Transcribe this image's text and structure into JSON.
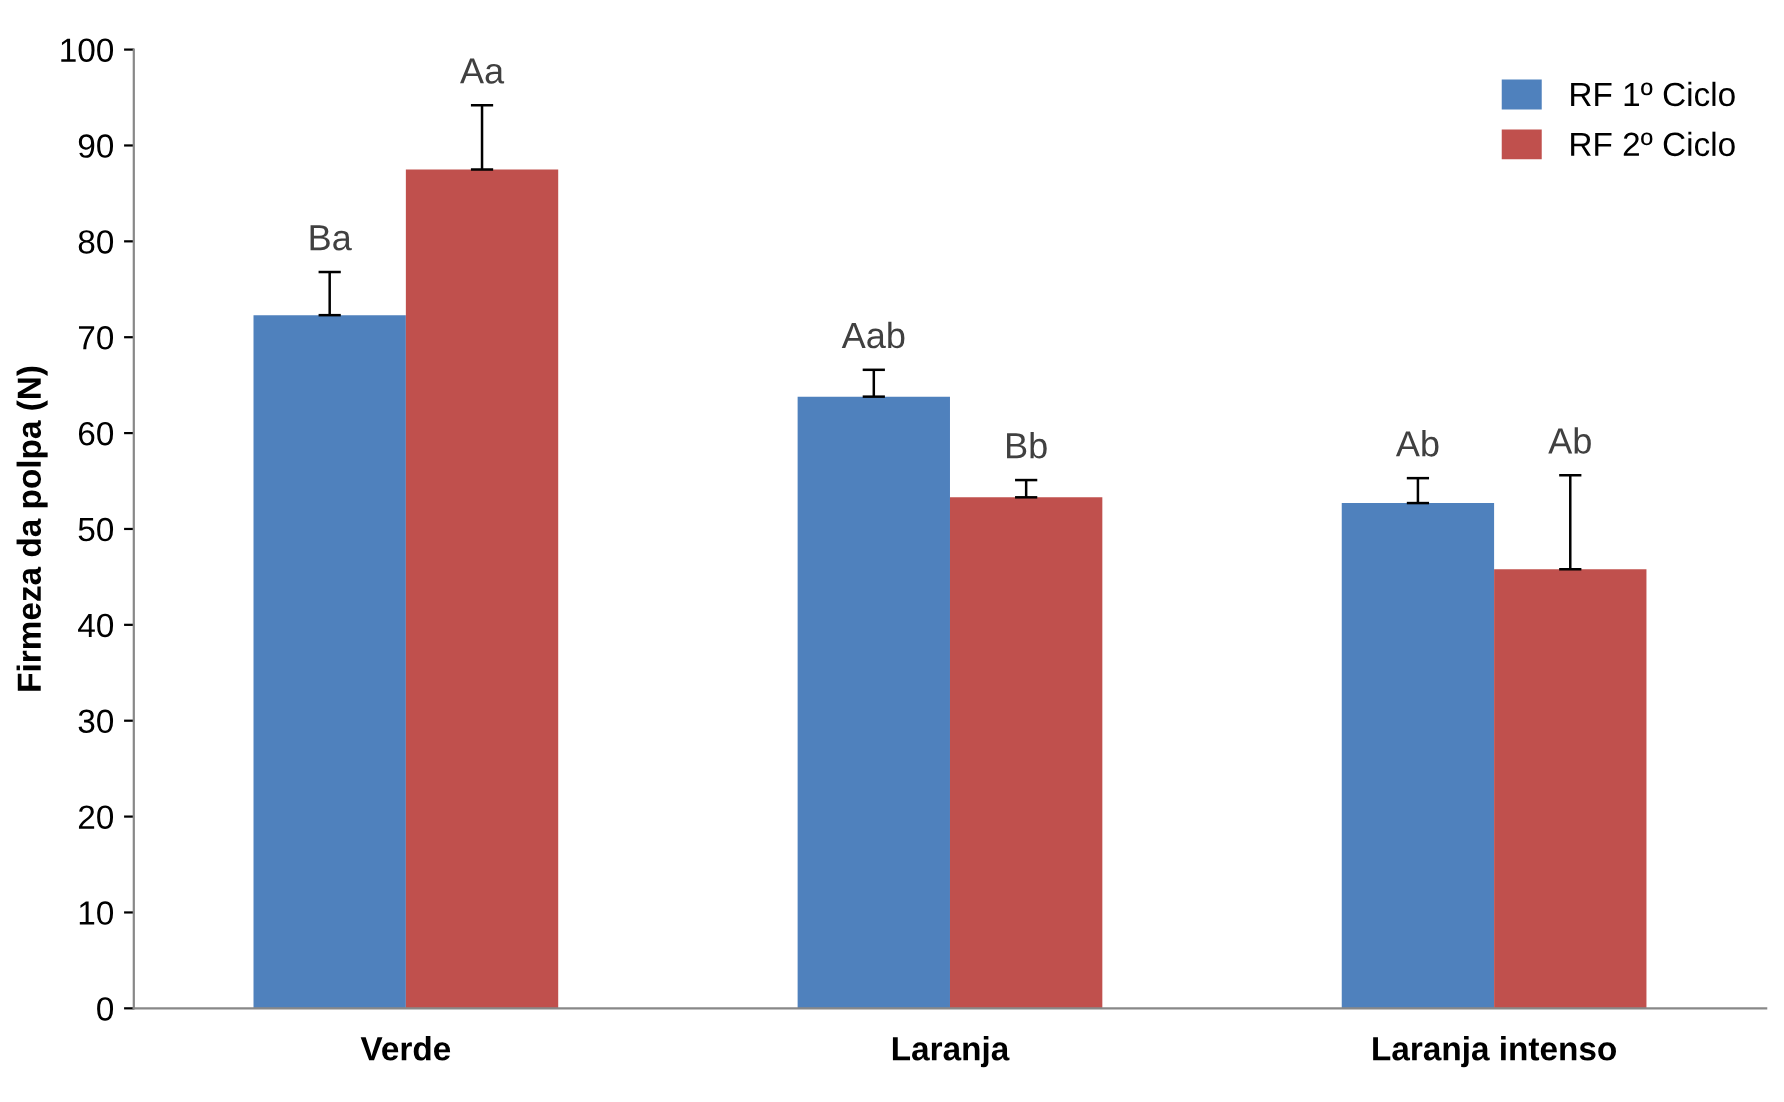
{
  "chart_data": {
    "type": "bar",
    "ylabel": "Firmeza da polpa (N)",
    "categories": [
      "Verde",
      "Laranja",
      "Laranja intenso"
    ],
    "series": [
      {
        "name": "RF 1º Ciclo",
        "color": "#4f81bd",
        "values": [
          72.3,
          63.8,
          52.7
        ],
        "errors": [
          [
            72.3,
            76.8
          ],
          [
            63.8,
            66.6
          ],
          [
            52.7,
            55.3
          ]
        ],
        "value_labels": [
          "Ba",
          "Aab",
          "Ab"
        ]
      },
      {
        "name": "RF 2º Ciclo",
        "color": "#c0504d",
        "values": [
          87.5,
          53.3,
          45.8
        ],
        "errors": [
          [
            87.5,
            94.2
          ],
          [
            53.3,
            55.1
          ],
          [
            45.8,
            55.6
          ]
        ],
        "value_labels": [
          "Aa",
          "Bb",
          "Ab"
        ]
      }
    ],
    "ylim": [
      0,
      100
    ],
    "yticks": [
      0,
      10,
      20,
      30,
      40,
      50,
      60,
      70,
      80,
      90,
      100
    ],
    "legend": "top right",
    "grid": false
  }
}
